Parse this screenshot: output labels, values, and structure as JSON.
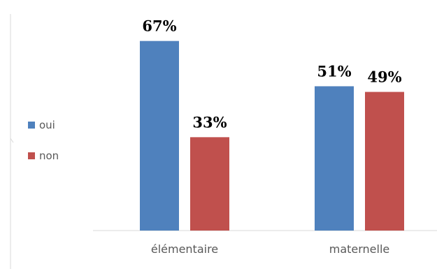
{
  "chart_data": {
    "type": "bar",
    "categories": [
      "élémentaire",
      "maternelle"
    ],
    "series": [
      {
        "name": "oui",
        "values": [
          67,
          51
        ],
        "labels": [
          "67%",
          "51%"
        ],
        "color": "#4f81bd"
      },
      {
        "name": "non",
        "values": [
          33,
          49
        ],
        "labels": [
          "33%",
          "49%"
        ],
        "color": "#c0504d"
      }
    ],
    "ylim": [
      0,
      100
    ],
    "grid": false,
    "legend_position": "left",
    "title": "",
    "xlabel": "",
    "ylabel": ""
  }
}
